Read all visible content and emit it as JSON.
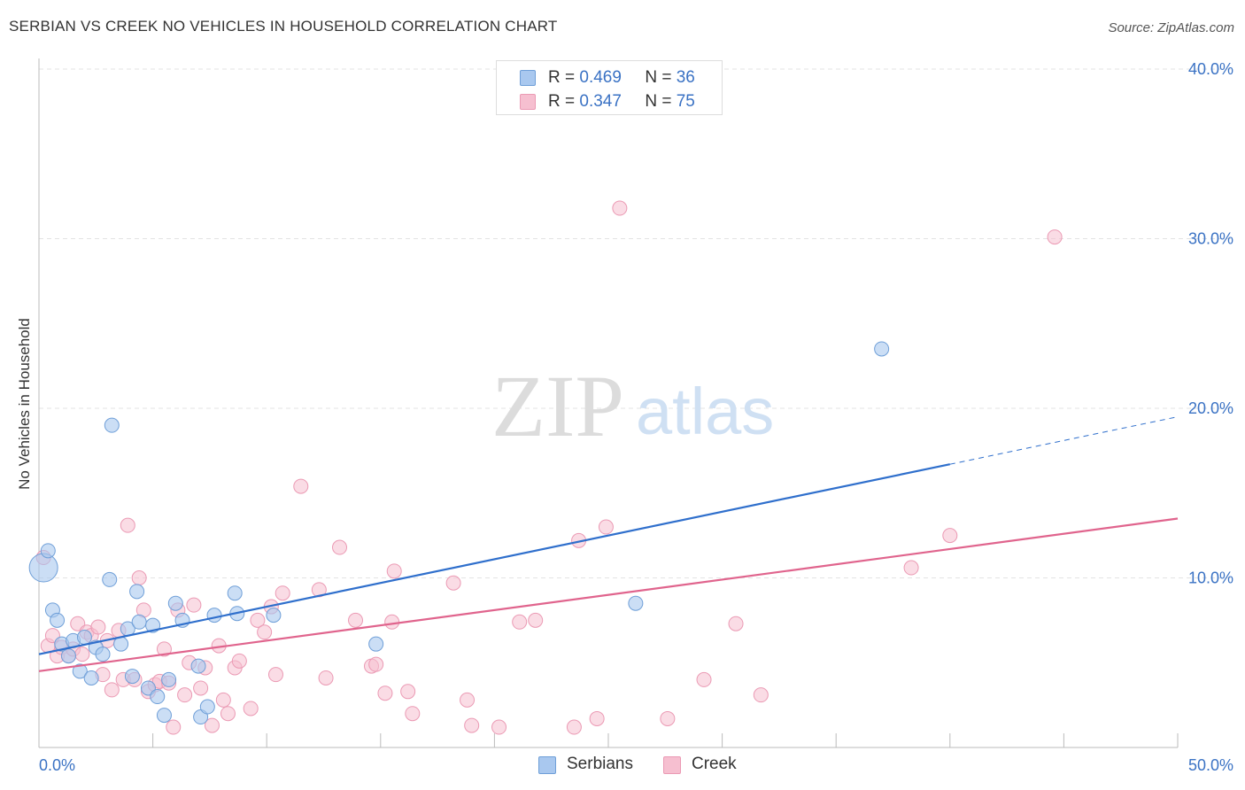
{
  "header": {
    "title": "SERBIAN VS CREEK NO VEHICLES IN HOUSEHOLD CORRELATION CHART",
    "source": "Source: ZipAtlas.com"
  },
  "watermark": {
    "zip": "ZIP",
    "atlas": "atlas"
  },
  "legend": {
    "serbians": {
      "r_label": "R =",
      "r_value": "0.469",
      "n_label": "N =",
      "n_value": "36"
    },
    "creek": {
      "r_label": "R =",
      "r_value": "0.347",
      "n_label": "N =",
      "n_value": "75"
    }
  },
  "colors": {
    "serbians_fill": "#a9c8ef",
    "serbians_stroke": "#6f9fd8",
    "serbians_line": "#2f6fcc",
    "creek_fill": "#f6bfd0",
    "creek_stroke": "#eb9ab4",
    "creek_line": "#e0648d",
    "tick_text": "#3a72c4",
    "grid": "#e3e3e3"
  },
  "chart_data": {
    "type": "scatter",
    "title": "SERBIAN VS CREEK NO VEHICLES IN HOUSEHOLD CORRELATION CHART",
    "xlabel": "",
    "ylabel": "No Vehicles in Household",
    "xlim": [
      0,
      50
    ],
    "ylim": [
      0,
      40
    ],
    "x_tick_labels": [
      "0.0%",
      "50.0%"
    ],
    "y_ticks": [
      10,
      20,
      30,
      40
    ],
    "y_tick_labels": [
      "10.0%",
      "20.0%",
      "30.0%",
      "40.0%"
    ],
    "grid": "horizontal dashed",
    "legend_position": "top-center",
    "series": [
      {
        "name": "Serbians",
        "color": "#a9c8ef",
        "points": [
          [
            0.2,
            10.6
          ],
          [
            0.4,
            11.6
          ],
          [
            0.6,
            8.1
          ],
          [
            0.8,
            7.5
          ],
          [
            1.0,
            6.1
          ],
          [
            1.3,
            5.4
          ],
          [
            1.5,
            6.3
          ],
          [
            1.8,
            4.5
          ],
          [
            2.0,
            6.5
          ],
          [
            2.3,
            4.1
          ],
          [
            2.5,
            5.9
          ],
          [
            2.8,
            5.5
          ],
          [
            3.1,
            9.9
          ],
          [
            3.2,
            19.0
          ],
          [
            3.6,
            6.1
          ],
          [
            3.9,
            7.0
          ],
          [
            4.1,
            4.2
          ],
          [
            4.3,
            9.2
          ],
          [
            4.4,
            7.4
          ],
          [
            4.8,
            3.5
          ],
          [
            5.0,
            7.2
          ],
          [
            5.2,
            3.0
          ],
          [
            5.5,
            1.9
          ],
          [
            5.7,
            4.0
          ],
          [
            6.0,
            8.5
          ],
          [
            6.3,
            7.5
          ],
          [
            7.0,
            4.8
          ],
          [
            7.1,
            1.8
          ],
          [
            7.4,
            2.4
          ],
          [
            7.7,
            7.8
          ],
          [
            8.6,
            9.1
          ],
          [
            8.7,
            7.9
          ],
          [
            10.3,
            7.8
          ],
          [
            14.8,
            6.1
          ],
          [
            26.2,
            8.5
          ],
          [
            37.0,
            23.5
          ]
        ],
        "trend": {
          "x": [
            0,
            40
          ],
          "y": [
            5.5,
            16.7
          ]
        },
        "trend_extension": {
          "x": [
            40,
            50
          ],
          "y": [
            16.7,
            19.5
          ]
        }
      },
      {
        "name": "Creek",
        "color": "#f6bfd0",
        "points": [
          [
            0.2,
            11.2
          ],
          [
            0.4,
            6.0
          ],
          [
            0.6,
            6.6
          ],
          [
            0.8,
            5.4
          ],
          [
            1.0,
            5.9
          ],
          [
            1.3,
            5.4
          ],
          [
            1.5,
            5.8
          ],
          [
            1.7,
            7.3
          ],
          [
            1.9,
            5.5
          ],
          [
            2.1,
            6.8
          ],
          [
            2.3,
            6.6
          ],
          [
            2.6,
            7.1
          ],
          [
            2.8,
            4.3
          ],
          [
            3.0,
            6.3
          ],
          [
            3.2,
            3.4
          ],
          [
            3.5,
            6.9
          ],
          [
            3.7,
            4.0
          ],
          [
            3.9,
            13.1
          ],
          [
            4.2,
            4.0
          ],
          [
            4.4,
            10.0
          ],
          [
            4.6,
            8.1
          ],
          [
            4.8,
            3.3
          ],
          [
            5.1,
            3.7
          ],
          [
            5.3,
            3.9
          ],
          [
            5.5,
            5.8
          ],
          [
            5.7,
            3.8
          ],
          [
            5.9,
            1.2
          ],
          [
            6.1,
            8.1
          ],
          [
            6.4,
            3.1
          ],
          [
            6.6,
            5.0
          ],
          [
            6.8,
            8.4
          ],
          [
            7.1,
            3.5
          ],
          [
            7.3,
            4.7
          ],
          [
            7.6,
            1.3
          ],
          [
            7.9,
            6.0
          ],
          [
            8.1,
            2.8
          ],
          [
            8.3,
            2.0
          ],
          [
            8.6,
            4.7
          ],
          [
            8.8,
            5.1
          ],
          [
            9.3,
            2.3
          ],
          [
            9.6,
            7.5
          ],
          [
            9.9,
            6.8
          ],
          [
            10.2,
            8.3
          ],
          [
            10.4,
            4.3
          ],
          [
            10.7,
            9.1
          ],
          [
            11.5,
            15.4
          ],
          [
            12.3,
            9.3
          ],
          [
            12.6,
            4.1
          ],
          [
            13.2,
            11.8
          ],
          [
            13.9,
            7.5
          ],
          [
            14.6,
            4.8
          ],
          [
            14.8,
            4.9
          ],
          [
            15.2,
            3.2
          ],
          [
            15.5,
            7.4
          ],
          [
            15.6,
            10.4
          ],
          [
            16.2,
            3.3
          ],
          [
            16.4,
            2.0
          ],
          [
            18.2,
            9.7
          ],
          [
            18.8,
            2.8
          ],
          [
            19.0,
            1.3
          ],
          [
            20.2,
            1.2
          ],
          [
            21.1,
            7.4
          ],
          [
            21.8,
            7.5
          ],
          [
            23.5,
            1.2
          ],
          [
            23.7,
            12.2
          ],
          [
            24.5,
            1.7
          ],
          [
            24.9,
            13.0
          ],
          [
            25.5,
            31.8
          ],
          [
            27.6,
            1.7
          ],
          [
            29.2,
            4.0
          ],
          [
            30.6,
            7.3
          ],
          [
            31.7,
            3.1
          ],
          [
            38.3,
            10.6
          ],
          [
            40.0,
            12.5
          ],
          [
            44.6,
            30.1
          ]
        ],
        "trend": {
          "x": [
            0,
            50
          ],
          "y": [
            4.5,
            13.5
          ]
        }
      }
    ]
  }
}
